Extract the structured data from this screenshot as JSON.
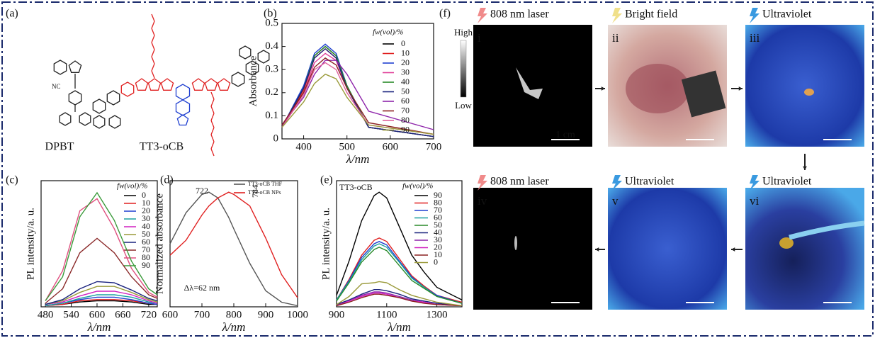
{
  "panels": {
    "a": {
      "label": "(a)",
      "molecules": [
        "DPBT",
        "TT3-oCB"
      ]
    },
    "f": {
      "label": "(f)",
      "images": [
        {
          "numeral": "i",
          "caption": "808 nm laser"
        },
        {
          "numeral": "ii",
          "caption": "Bright field"
        },
        {
          "numeral": "iii",
          "caption": "Ultraviolet"
        },
        {
          "numeral": "iv",
          "caption": "808 nm laser"
        },
        {
          "numeral": "v",
          "caption": "Ultraviolet"
        },
        {
          "numeral": "vi",
          "caption": "Ultraviolet"
        }
      ],
      "colorbar": {
        "high": "High",
        "low": "Low"
      },
      "scale_bar": "1 cm"
    }
  },
  "chart_data": [
    {
      "type": "line",
      "label": "(b)",
      "x_label": "λ/nm",
      "y_label": "Absorbance",
      "legend_title": "fw(vol)/%",
      "x": [
        350,
        400,
        425,
        450,
        475,
        500,
        550,
        700
      ],
      "xlim": [
        350,
        700
      ],
      "xticks": [
        400,
        500,
        600,
        700
      ],
      "ylim": [
        0,
        0.5
      ],
      "yticks": [
        0,
        0.1,
        0.2,
        0.3,
        0.4,
        0.5
      ],
      "series": [
        {
          "name": "0",
          "color": "#000000",
          "values": [
            0.05,
            0.22,
            0.36,
            0.4,
            0.36,
            0.23,
            0.05,
            0.01
          ]
        },
        {
          "name": "10",
          "color": "#e02020",
          "values": [
            0.05,
            0.21,
            0.35,
            0.39,
            0.35,
            0.22,
            0.05,
            0.01
          ]
        },
        {
          "name": "20",
          "color": "#1f3fd0",
          "values": [
            0.05,
            0.23,
            0.37,
            0.41,
            0.37,
            0.23,
            0.05,
            0.01
          ]
        },
        {
          "name": "30",
          "color": "#e0409a",
          "values": [
            0.05,
            0.2,
            0.33,
            0.37,
            0.34,
            0.22,
            0.05,
            0.01
          ]
        },
        {
          "name": "40",
          "color": "#2a8a2a",
          "values": [
            0.05,
            0.22,
            0.36,
            0.4,
            0.36,
            0.23,
            0.05,
            0.01
          ]
        },
        {
          "name": "50",
          "color": "#1a237e",
          "values": [
            0.05,
            0.22,
            0.35,
            0.39,
            0.35,
            0.22,
            0.05,
            0.01
          ]
        },
        {
          "name": "60",
          "color": "#8e24aa",
          "values": [
            0.06,
            0.18,
            0.28,
            0.34,
            0.34,
            0.28,
            0.12,
            0.04
          ]
        },
        {
          "name": "70",
          "color": "#8b2020",
          "values": [
            0.06,
            0.2,
            0.31,
            0.35,
            0.32,
            0.22,
            0.07,
            0.02
          ]
        },
        {
          "name": "80",
          "color": "#e0609a",
          "values": [
            0.05,
            0.19,
            0.3,
            0.33,
            0.3,
            0.2,
            0.06,
            0.02
          ]
        },
        {
          "name": "90",
          "color": "#9a9a3a",
          "values": [
            0.05,
            0.16,
            0.24,
            0.28,
            0.26,
            0.18,
            0.06,
            0.02
          ]
        }
      ]
    },
    {
      "type": "line",
      "label": "(c)",
      "x_label": "λ/nm",
      "y_label": "PL intensity/a. u.",
      "legend_title": "fw(vol)/%",
      "x": [
        480,
        520,
        560,
        600,
        640,
        680,
        720,
        740
      ],
      "xlim": [
        470,
        740
      ],
      "xticks": [
        480,
        540,
        600,
        660,
        720
      ],
      "ylim": [
        0,
        1.05
      ],
      "series": [
        {
          "name": "0",
          "color": "#000000",
          "values": [
            0.01,
            0.02,
            0.04,
            0.05,
            0.05,
            0.04,
            0.02,
            0.02
          ]
        },
        {
          "name": "10",
          "color": "#e02020",
          "values": [
            0.01,
            0.02,
            0.05,
            0.06,
            0.06,
            0.05,
            0.03,
            0.02
          ]
        },
        {
          "name": "20",
          "color": "#1f3fd0",
          "values": [
            0.01,
            0.03,
            0.06,
            0.08,
            0.08,
            0.06,
            0.03,
            0.02
          ]
        },
        {
          "name": "30",
          "color": "#1aa0a0",
          "values": [
            0.01,
            0.03,
            0.07,
            0.1,
            0.1,
            0.08,
            0.04,
            0.03
          ]
        },
        {
          "name": "40",
          "color": "#d020c0",
          "values": [
            0.02,
            0.04,
            0.09,
            0.13,
            0.13,
            0.1,
            0.05,
            0.03
          ]
        },
        {
          "name": "50",
          "color": "#9a9a3a",
          "values": [
            0.02,
            0.05,
            0.12,
            0.17,
            0.17,
            0.12,
            0.06,
            0.04
          ]
        },
        {
          "name": "60",
          "color": "#1a237e",
          "values": [
            0.02,
            0.06,
            0.15,
            0.21,
            0.2,
            0.14,
            0.07,
            0.05
          ]
        },
        {
          "name": "70",
          "color": "#8b2a2a",
          "values": [
            0.03,
            0.15,
            0.45,
            0.57,
            0.45,
            0.25,
            0.1,
            0.07
          ]
        },
        {
          "name": "80",
          "color": "#e05080",
          "values": [
            0.05,
            0.3,
            0.8,
            0.9,
            0.65,
            0.32,
            0.12,
            0.08
          ]
        },
        {
          "name": "90",
          "color": "#3a9a3a",
          "values": [
            0.05,
            0.25,
            0.75,
            0.95,
            0.72,
            0.38,
            0.15,
            0.1
          ]
        }
      ]
    },
    {
      "type": "line",
      "label": "(d)",
      "x_label": "λ/nm",
      "y_label": "Normalized absorbance",
      "x": [
        600,
        650,
        700,
        722,
        750,
        784,
        800,
        850,
        900,
        950,
        1000
      ],
      "xlim": [
        600,
        1000
      ],
      "xticks": [
        600,
        700,
        800,
        900,
        1000
      ],
      "ylim": [
        0,
        1.1
      ],
      "annotations": [
        "722",
        "784",
        "Δλ=62 nm"
      ],
      "series": [
        {
          "name": "TT3-oCB THF",
          "color": "#555555",
          "values": [
            0.55,
            0.82,
            0.98,
            1.0,
            0.95,
            0.78,
            0.68,
            0.38,
            0.14,
            0.04,
            0.01
          ]
        },
        {
          "name": "TT3-oCB NPs",
          "color": "#e02020",
          "values": [
            0.45,
            0.58,
            0.8,
            0.88,
            0.95,
            1.0,
            0.98,
            0.88,
            0.6,
            0.28,
            0.08
          ]
        }
      ]
    },
    {
      "type": "line",
      "label": "(e)",
      "x_label": "λ/nm",
      "y_label": "PL intensity/a. u.",
      "legend_title": "fw(vol)/%",
      "annotations": [
        "TT3-oCB"
      ],
      "x": [
        900,
        950,
        1000,
        1050,
        1070,
        1100,
        1150,
        1200,
        1250,
        1300,
        1400
      ],
      "xlim": [
        900,
        1400
      ],
      "xticks": [
        900,
        1100,
        1300
      ],
      "ylim": [
        0,
        1.1
      ],
      "series": [
        {
          "name": "90",
          "color": "#000000",
          "values": [
            0.1,
            0.4,
            0.75,
            0.97,
            1.0,
            0.95,
            0.7,
            0.45,
            0.3,
            0.17,
            0.06
          ]
        },
        {
          "name": "80",
          "color": "#e02020",
          "values": [
            0.06,
            0.24,
            0.45,
            0.58,
            0.6,
            0.57,
            0.42,
            0.27,
            0.18,
            0.1,
            0.04
          ]
        },
        {
          "name": "70",
          "color": "#1f3fd0",
          "values": [
            0.06,
            0.23,
            0.43,
            0.55,
            0.57,
            0.54,
            0.4,
            0.26,
            0.17,
            0.1,
            0.03
          ]
        },
        {
          "name": "60",
          "color": "#1aa0a0",
          "values": [
            0.06,
            0.22,
            0.41,
            0.53,
            0.55,
            0.52,
            0.39,
            0.25,
            0.17,
            0.09,
            0.03
          ]
        },
        {
          "name": "50",
          "color": "#2a8a2a",
          "values": [
            0.05,
            0.21,
            0.39,
            0.5,
            0.52,
            0.49,
            0.36,
            0.23,
            0.16,
            0.09,
            0.03
          ]
        },
        {
          "name": "40",
          "color": "#1a237e",
          "values": [
            0.02,
            0.06,
            0.11,
            0.15,
            0.15,
            0.14,
            0.11,
            0.07,
            0.05,
            0.03,
            0.01
          ]
        },
        {
          "name": "30",
          "color": "#8e24aa",
          "values": [
            0.01,
            0.05,
            0.1,
            0.13,
            0.13,
            0.12,
            0.09,
            0.06,
            0.04,
            0.02,
            0.01
          ]
        },
        {
          "name": "20",
          "color": "#d020c0",
          "values": [
            0.01,
            0.05,
            0.09,
            0.12,
            0.12,
            0.11,
            0.08,
            0.05,
            0.04,
            0.02,
            0.01
          ]
        },
        {
          "name": "10",
          "color": "#8b2020",
          "values": [
            0.01,
            0.04,
            0.08,
            0.11,
            0.11,
            0.1,
            0.08,
            0.05,
            0.03,
            0.02,
            0.01
          ]
        },
        {
          "name": "0",
          "color": "#9a9a3a",
          "values": [
            0.02,
            0.09,
            0.2,
            0.21,
            0.22,
            0.21,
            0.15,
            0.1,
            0.07,
            0.04,
            0.01
          ]
        }
      ]
    }
  ]
}
